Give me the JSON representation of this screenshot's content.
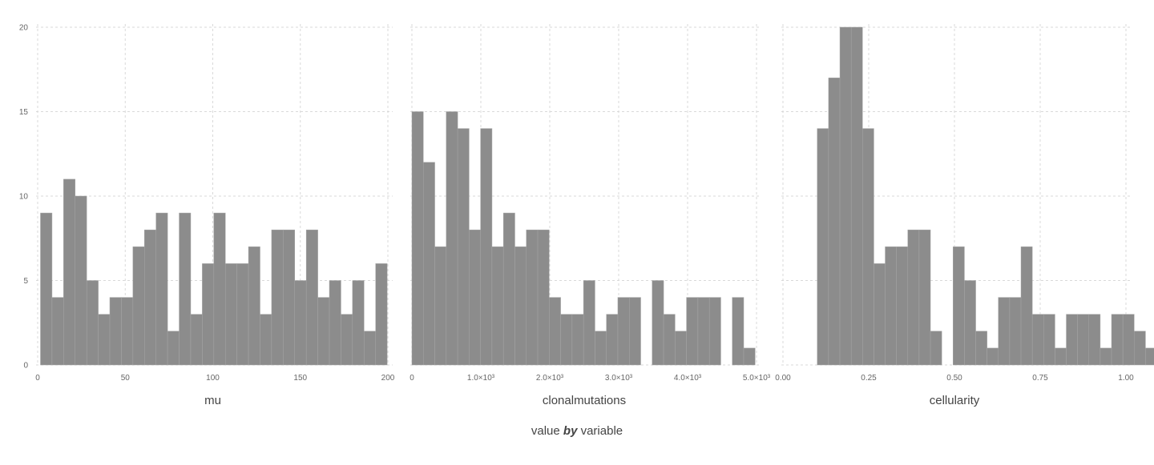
{
  "footer": {
    "prefix": "value",
    "by": "by",
    "suffix": "variable"
  },
  "chart_data": [
    {
      "type": "bar",
      "xlabel": "mu",
      "xlim": [
        0,
        200
      ],
      "ylim": [
        0,
        20
      ],
      "xticks": [
        0,
        50,
        100,
        150,
        200
      ],
      "xtick_labels": [
        "0",
        "50",
        "100",
        "150",
        "200"
      ],
      "yticks": [
        0,
        5,
        10,
        15,
        20
      ],
      "ytick_labels": [
        "0",
        "5",
        "10",
        "15",
        "20"
      ],
      "show_y_labels": true,
      "bins": [
        {
          "x0": 1.6,
          "x1": 8.2,
          "count": 9
        },
        {
          "x0": 8.2,
          "x1": 14.8,
          "count": 4
        },
        {
          "x0": 14.8,
          "x1": 21.4,
          "count": 11
        },
        {
          "x0": 21.4,
          "x1": 28.0,
          "count": 10
        },
        {
          "x0": 28.0,
          "x1": 34.6,
          "count": 5
        },
        {
          "x0": 34.6,
          "x1": 41.2,
          "count": 3
        },
        {
          "x0": 41.2,
          "x1": 47.8,
          "count": 4
        },
        {
          "x0": 47.8,
          "x1": 54.4,
          "count": 4
        },
        {
          "x0": 54.4,
          "x1": 61.0,
          "count": 7
        },
        {
          "x0": 61.0,
          "x1": 67.6,
          "count": 8
        },
        {
          "x0": 67.6,
          "x1": 74.2,
          "count": 9
        },
        {
          "x0": 74.2,
          "x1": 80.8,
          "count": 2
        },
        {
          "x0": 80.8,
          "x1": 87.4,
          "count": 9
        },
        {
          "x0": 87.4,
          "x1": 94.0,
          "count": 3
        },
        {
          "x0": 94.0,
          "x1": 100.6,
          "count": 6
        },
        {
          "x0": 100.6,
          "x1": 107.2,
          "count": 9
        },
        {
          "x0": 107.2,
          "x1": 113.8,
          "count": 6
        },
        {
          "x0": 113.8,
          "x1": 120.4,
          "count": 6
        },
        {
          "x0": 120.4,
          "x1": 127.0,
          "count": 7
        },
        {
          "x0": 127.0,
          "x1": 133.6,
          "count": 3
        },
        {
          "x0": 133.6,
          "x1": 140.2,
          "count": 8
        },
        {
          "x0": 140.2,
          "x1": 146.8,
          "count": 8
        },
        {
          "x0": 146.8,
          "x1": 153.4,
          "count": 5
        },
        {
          "x0": 153.4,
          "x1": 160.0,
          "count": 8
        },
        {
          "x0": 160.0,
          "x1": 166.6,
          "count": 4
        },
        {
          "x0": 166.6,
          "x1": 173.2,
          "count": 5
        },
        {
          "x0": 173.2,
          "x1": 179.8,
          "count": 3
        },
        {
          "x0": 179.8,
          "x1": 186.4,
          "count": 5
        },
        {
          "x0": 186.4,
          "x1": 193.0,
          "count": 2
        },
        {
          "x0": 193.0,
          "x1": 199.6,
          "count": 6
        }
      ]
    },
    {
      "type": "bar",
      "xlabel": "clonalmutations",
      "xlim": [
        0,
        5000
      ],
      "ylim": [
        0,
        20
      ],
      "xticks": [
        0,
        1000,
        2000,
        3000,
        4000,
        5000
      ],
      "xtick_labels": [
        "0",
        "1.0×10³",
        "2.0×10³",
        "3.0×10³",
        "4.0×10³",
        "5.0×10³"
      ],
      "yticks": [
        0,
        5,
        10,
        15,
        20
      ],
      "ytick_labels": [
        "0",
        "5",
        "10",
        "15",
        "20"
      ],
      "show_y_labels": false,
      "bins": [
        {
          "x0": 0,
          "x1": 166,
          "count": 15
        },
        {
          "x0": 166,
          "x1": 332,
          "count": 12
        },
        {
          "x0": 332,
          "x1": 498,
          "count": 7
        },
        {
          "x0": 498,
          "x1": 664,
          "count": 15
        },
        {
          "x0": 664,
          "x1": 830,
          "count": 14
        },
        {
          "x0": 830,
          "x1": 996,
          "count": 8
        },
        {
          "x0": 996,
          "x1": 1162,
          "count": 14
        },
        {
          "x0": 1162,
          "x1": 1328,
          "count": 7
        },
        {
          "x0": 1328,
          "x1": 1494,
          "count": 9
        },
        {
          "x0": 1494,
          "x1": 1660,
          "count": 7
        },
        {
          "x0": 1660,
          "x1": 1826,
          "count": 8
        },
        {
          "x0": 1826,
          "x1": 1992,
          "count": 8
        },
        {
          "x0": 1992,
          "x1": 2158,
          "count": 4
        },
        {
          "x0": 2158,
          "x1": 2324,
          "count": 3
        },
        {
          "x0": 2324,
          "x1": 2490,
          "count": 3
        },
        {
          "x0": 2490,
          "x1": 2656,
          "count": 5
        },
        {
          "x0": 2656,
          "x1": 2822,
          "count": 2
        },
        {
          "x0": 2822,
          "x1": 2988,
          "count": 3
        },
        {
          "x0": 2988,
          "x1": 3154,
          "count": 4
        },
        {
          "x0": 3154,
          "x1": 3320,
          "count": 4
        },
        {
          "x0": 3320,
          "x1": 3486,
          "count": 0
        },
        {
          "x0": 3486,
          "x1": 3652,
          "count": 5
        },
        {
          "x0": 3652,
          "x1": 3818,
          "count": 3
        },
        {
          "x0": 3818,
          "x1": 3984,
          "count": 2
        },
        {
          "x0": 3984,
          "x1": 4150,
          "count": 4
        },
        {
          "x0": 4150,
          "x1": 4316,
          "count": 4
        },
        {
          "x0": 4316,
          "x1": 4482,
          "count": 4
        },
        {
          "x0": 4482,
          "x1": 4648,
          "count": 0
        },
        {
          "x0": 4648,
          "x1": 4814,
          "count": 4
        },
        {
          "x0": 4814,
          "x1": 4980,
          "count": 1
        }
      ]
    },
    {
      "type": "bar",
      "xlabel": "cellularity",
      "xlim": [
        0,
        1
      ],
      "ylim": [
        0,
        20
      ],
      "xticks": [
        0,
        0.25,
        0.5,
        0.75,
        1.0
      ],
      "xtick_labels": [
        "0.00",
        "0.25",
        "0.50",
        "0.75",
        "1.00"
      ],
      "yticks": [
        0,
        5,
        10,
        15,
        20
      ],
      "ytick_labels": [
        "0",
        "5",
        "10",
        "15",
        "20"
      ],
      "show_y_labels": false,
      "bins": [
        {
          "x0": 0.1,
          "x1": 0.133,
          "count": 14
        },
        {
          "x0": 0.133,
          "x1": 0.166,
          "count": 17
        },
        {
          "x0": 0.166,
          "x1": 0.199,
          "count": 20
        },
        {
          "x0": 0.199,
          "x1": 0.232,
          "count": 20
        },
        {
          "x0": 0.232,
          "x1": 0.265,
          "count": 14
        },
        {
          "x0": 0.265,
          "x1": 0.298,
          "count": 6
        },
        {
          "x0": 0.298,
          "x1": 0.331,
          "count": 7
        },
        {
          "x0": 0.331,
          "x1": 0.364,
          "count": 7
        },
        {
          "x0": 0.364,
          "x1": 0.397,
          "count": 8
        },
        {
          "x0": 0.397,
          "x1": 0.43,
          "count": 8
        },
        {
          "x0": 0.43,
          "x1": 0.463,
          "count": 2
        },
        {
          "x0": 0.463,
          "x1": 0.496,
          "count": 0
        },
        {
          "x0": 0.496,
          "x1": 0.529,
          "count": 7
        },
        {
          "x0": 0.529,
          "x1": 0.562,
          "count": 5
        },
        {
          "x0": 0.562,
          "x1": 0.595,
          "count": 2
        },
        {
          "x0": 0.595,
          "x1": 0.628,
          "count": 1
        },
        {
          "x0": 0.628,
          "x1": 0.661,
          "count": 4
        },
        {
          "x0": 0.661,
          "x1": 0.694,
          "count": 4
        },
        {
          "x0": 0.694,
          "x1": 0.727,
          "count": 7
        },
        {
          "x0": 0.727,
          "x1": 0.76,
          "count": 3
        },
        {
          "x0": 0.76,
          "x1": 0.793,
          "count": 3
        },
        {
          "x0": 0.793,
          "x1": 0.826,
          "count": 1
        },
        {
          "x0": 0.826,
          "x1": 0.859,
          "count": 3
        },
        {
          "x0": 0.859,
          "x1": 0.892,
          "count": 3
        },
        {
          "x0": 0.892,
          "x1": 0.925,
          "count": 3
        },
        {
          "x0": 0.925,
          "x1": 0.958,
          "count": 1
        },
        {
          "x0": 0.958,
          "x1": 0.991,
          "count": 3
        },
        {
          "x0": 0.991,
          "x1": 1.024,
          "count": 3
        },
        {
          "x0": 1.024,
          "x1": 1.057,
          "count": 2
        },
        {
          "x0": 1.057,
          "x1": 1.09,
          "count": 1
        }
      ]
    }
  ]
}
